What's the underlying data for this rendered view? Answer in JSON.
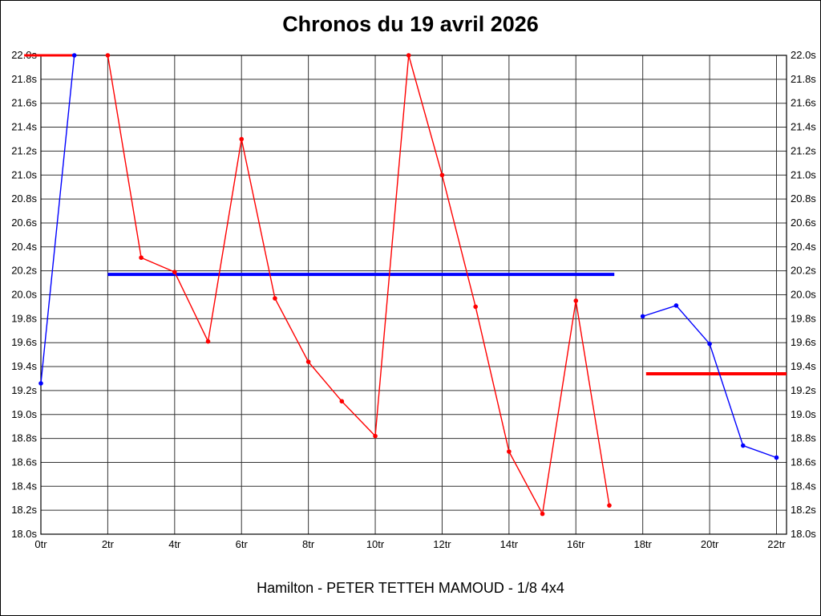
{
  "chart_data": {
    "type": "line",
    "title": "Chronos du 19 avril 2026",
    "subtitle": "Hamilton - PETER TETTEH MAMOUD - 1/8 4x4",
    "x_unit": "tr",
    "y_unit": "s",
    "xlim": [
      0,
      22.3
    ],
    "ylim": [
      18.0,
      22.0
    ],
    "grid": true,
    "legend": "none",
    "x_tick_values": [
      0,
      2,
      4,
      6,
      8,
      10,
      12,
      14,
      16,
      18,
      20,
      22
    ],
    "x_tick_labels": [
      "0tr",
      "2tr",
      "4tr",
      "6tr",
      "8tr",
      "10tr",
      "12tr",
      "14tr",
      "16tr",
      "18tr",
      "20tr",
      "22tr"
    ],
    "y_tick_values": [
      22.0,
      21.8,
      21.6,
      21.4,
      21.2,
      21.0,
      20.8,
      20.6,
      20.4,
      20.2,
      20.0,
      19.8,
      19.6,
      19.4,
      19.2,
      19.0,
      18.8,
      18.6,
      18.4,
      18.2,
      18.0
    ],
    "y_tick_labels": [
      "22.0s",
      "21.8s",
      "21.6s",
      "21.4s",
      "21.2s",
      "21.0s",
      "20.8s",
      "20.6s",
      "20.4s",
      "20.2s",
      "20.0s",
      "19.8s",
      "19.6s",
      "19.4s",
      "19.2s",
      "19.0s",
      "18.8s",
      "18.6s",
      "18.4s",
      "18.2s",
      "18.0s"
    ],
    "colors": {
      "red": "#ff0000",
      "blue": "#0000ff",
      "grid": "#333333",
      "axis": "#000000",
      "text": "#000000",
      "background": "#ffffff"
    },
    "series": [
      {
        "name": "blue-opening",
        "color": "#0000ff",
        "x": [
          0,
          1
        ],
        "y": [
          19.26,
          22.0
        ]
      },
      {
        "name": "red-chronos",
        "color": "#ff0000",
        "x": [
          2,
          3,
          4,
          5,
          6,
          7,
          8,
          9,
          10,
          11,
          12,
          13,
          14,
          15,
          16,
          17
        ],
        "y": [
          22.0,
          20.31,
          20.19,
          19.61,
          21.3,
          19.97,
          19.44,
          19.11,
          18.82,
          22.0,
          21.0,
          19.9,
          18.69,
          18.17,
          19.95,
          18.24
        ]
      },
      {
        "name": "blue-chronos",
        "color": "#0000ff",
        "x": [
          18,
          19,
          20,
          21,
          22
        ],
        "y": [
          19.82,
          19.91,
          19.59,
          18.74,
          18.64
        ]
      }
    ],
    "reference_lines": [
      {
        "name": "red-start-line",
        "color": "#ff0000",
        "y": 22.0,
        "x1": -0.5,
        "x2": 1.0,
        "width": 3
      },
      {
        "name": "blue-average-line",
        "color": "#0000ff",
        "y": 20.17,
        "x1": 2.0,
        "x2": 17.15,
        "width": 4
      },
      {
        "name": "red-average-line",
        "color": "#ff0000",
        "y": 19.34,
        "x1": 18.1,
        "x2": 22.3,
        "width": 4
      }
    ]
  }
}
